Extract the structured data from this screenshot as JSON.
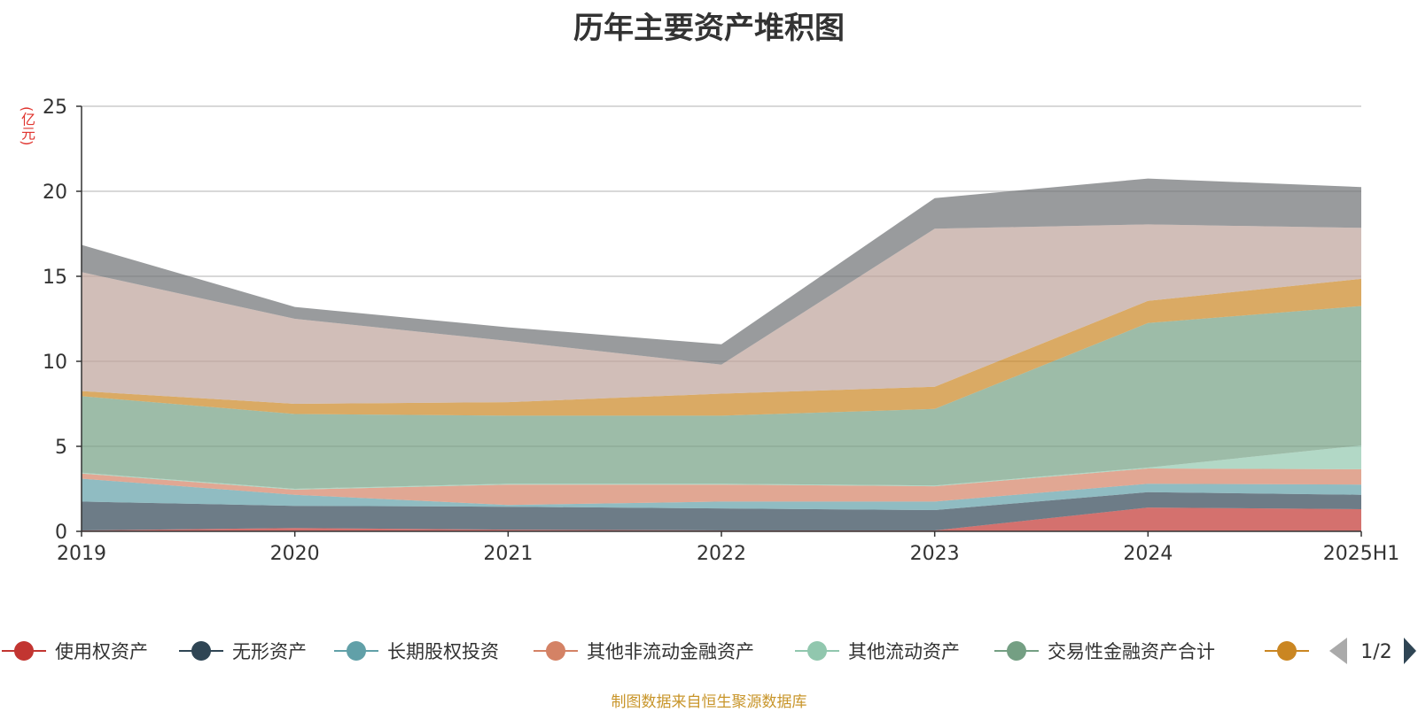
{
  "chart_data": {
    "type": "area",
    "stacked": true,
    "title": "历年主要资产堆积图",
    "unit_label": "(亿元)",
    "source_note": "制图数据来自恒生聚源数据库",
    "x": [
      "2019",
      "2020",
      "2021",
      "2022",
      "2023",
      "2024",
      "2025H1"
    ],
    "ylim": [
      0,
      25
    ],
    "yticks": [
      0,
      5,
      10,
      15,
      20,
      25
    ],
    "grid": true,
    "legend_position": "bottom",
    "legend_page": "1/2",
    "series": [
      {
        "name": "使用权资产",
        "color": "#c23531",
        "values": [
          0.05,
          0.2,
          0.1,
          0.05,
          0.05,
          1.4,
          1.3
        ]
      },
      {
        "name": "无形资产",
        "color": "#2f4554",
        "values": [
          1.7,
          1.3,
          1.35,
          1.3,
          1.2,
          0.9,
          0.85
        ]
      },
      {
        "name": "长期股权投资",
        "color": "#61a0a8",
        "values": [
          1.35,
          0.65,
          0.1,
          0.4,
          0.5,
          0.5,
          0.6
        ]
      },
      {
        "name": "其他非流动金融资产",
        "color": "#d48265",
        "values": [
          0.3,
          0.3,
          1.2,
          1.0,
          0.9,
          0.9,
          0.9
        ]
      },
      {
        "name": "其他流动资产",
        "color": "#91c7ae",
        "values": [
          0.05,
          0.05,
          0.05,
          0.05,
          0.05,
          0.05,
          1.4
        ]
      },
      {
        "name": "交易性金融资产合计",
        "color": "#749f83",
        "values": [
          4.5,
          4.4,
          4.0,
          4.0,
          4.5,
          8.5,
          8.2
        ]
      },
      {
        "name": "",
        "color": "#ca8622",
        "values": [
          0.3,
          0.6,
          0.8,
          1.3,
          1.3,
          1.3,
          1.6
        ]
      },
      {
        "name": "",
        "color": "#bda29a",
        "values": [
          7.0,
          5.0,
          3.6,
          1.7,
          9.3,
          4.5,
          3.0
        ]
      },
      {
        "name": "",
        "color": "#6e7074",
        "values": [
          1.6,
          0.7,
          0.8,
          1.2,
          1.8,
          2.7,
          2.4
        ]
      }
    ]
  }
}
